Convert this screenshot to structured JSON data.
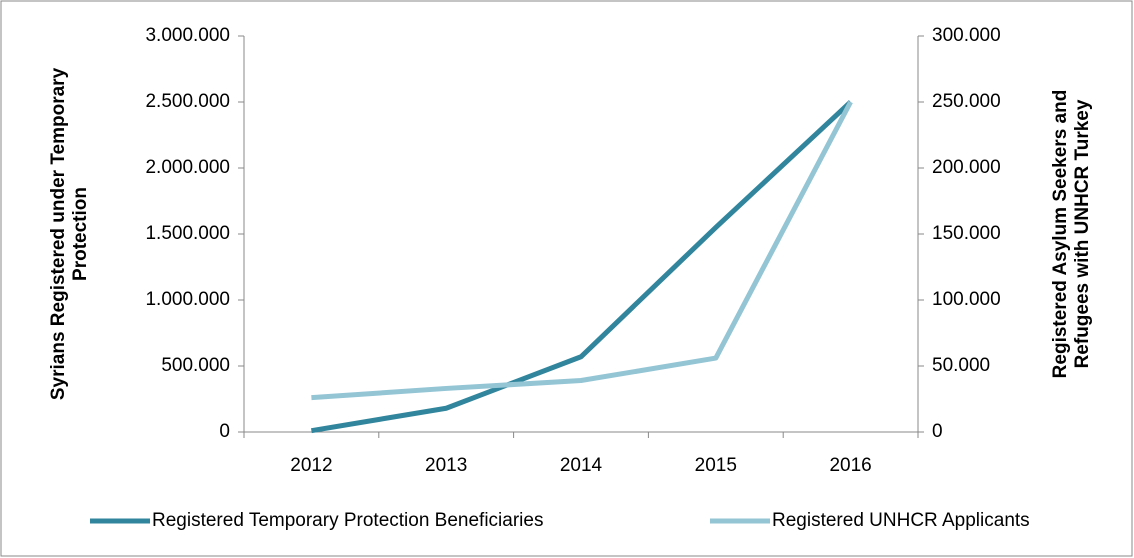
{
  "chart_data": {
    "type": "line",
    "categories": [
      "2012",
      "2013",
      "2014",
      "2015",
      "2016"
    ],
    "series": [
      {
        "name": "Registered Temporary Protection Beneficiaries",
        "color": "#31859c",
        "values": [
          10000,
          180000,
          570000,
          1550000,
          2500000
        ]
      },
      {
        "name": "Registered UNHCR Applicants",
        "color": "#93c5d5",
        "axis": "y2",
        "values": [
          26000,
          33000,
          39000,
          56000,
          250000
        ]
      }
    ],
    "ylabel": [
      "Syrians Registered under Temporary",
      "Protection"
    ],
    "y2label": [
      "Registered Asylum Seekers and",
      "Refugees with UNHCR Turkey"
    ],
    "ylim": [
      0,
      3000000
    ],
    "yticks": [
      0,
      {
        "value": 500000,
        "label": "500.000"
      },
      {
        "value": 1000000,
        "label": "1.000.000"
      },
      {
        "value": 1500000,
        "label": "1.500.000"
      },
      {
        "value": 2000000,
        "label": "2.000.000"
      },
      {
        "value": 2500000,
        "label": "2.500.000"
      },
      {
        "value": 3000000,
        "label": "3.000.000"
      }
    ],
    "y2lim": [
      0,
      300000
    ],
    "y2ticks": [
      0,
      {
        "value": 50000,
        "label": "50.000"
      },
      {
        "value": 100000,
        "label": "100.000"
      },
      {
        "value": 150000,
        "label": "150.000"
      },
      {
        "value": 200000,
        "label": "200.000"
      },
      {
        "value": 250000,
        "label": "250.000"
      },
      {
        "value": 300000,
        "label": "300.000"
      }
    ],
    "grid": false,
    "legend": "bottom"
  }
}
